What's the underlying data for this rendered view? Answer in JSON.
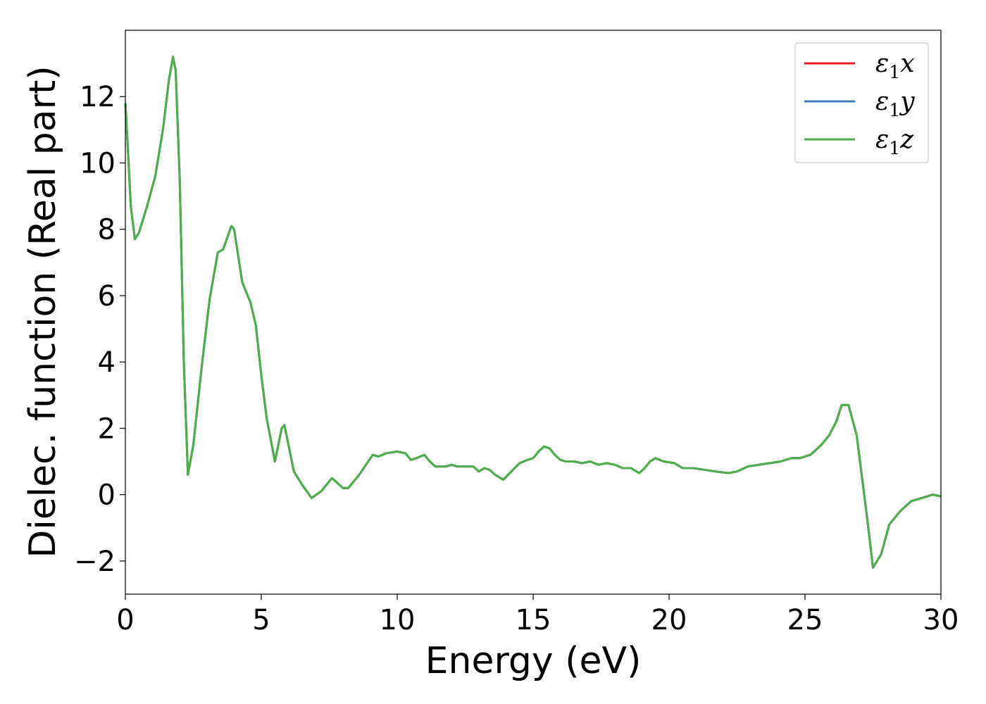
{
  "chart_data": {
    "type": "line",
    "title": "",
    "xlabel": "Energy (eV)",
    "ylabel": "Dielec. function (Real part)",
    "xlim": [
      0,
      30
    ],
    "ylim": [
      -3,
      14
    ],
    "xticks": [
      0,
      5,
      10,
      15,
      20,
      25,
      30
    ],
    "yticks": [
      -2,
      0,
      2,
      4,
      6,
      8,
      10,
      12
    ],
    "xtick_labels": [
      "0",
      "5",
      "10",
      "15",
      "20",
      "25",
      "30"
    ],
    "ytick_labels": [
      "−2",
      "0",
      "2",
      "4",
      "6",
      "8",
      "10",
      "12"
    ],
    "grid": false,
    "legend_position": "top-right",
    "x": [
      0,
      0.1,
      0.2,
      0.35,
      0.5,
      0.8,
      1.1,
      1.4,
      1.6,
      1.75,
      1.85,
      2.0,
      2.15,
      2.3,
      2.5,
      2.8,
      3.1,
      3.4,
      3.6,
      3.9,
      4.0,
      4.3,
      4.6,
      4.8,
      5.0,
      5.2,
      5.5,
      5.75,
      5.85,
      6.0,
      6.2,
      6.5,
      6.85,
      7.2,
      7.6,
      8.0,
      8.2,
      8.6,
      9.1,
      9.3,
      9.6,
      10.0,
      10.3,
      10.5,
      10.7,
      11.0,
      11.2,
      11.4,
      11.8,
      12.0,
      12.2,
      12.5,
      12.8,
      13.0,
      13.2,
      13.4,
      13.6,
      13.9,
      14.2,
      14.5,
      14.8,
      15.0,
      15.2,
      15.4,
      15.6,
      15.8,
      16.0,
      16.2,
      16.5,
      16.8,
      17.1,
      17.4,
      17.7,
      18.0,
      18.3,
      18.6,
      18.9,
      19.1,
      19.3,
      19.5,
      19.8,
      20.2,
      20.5,
      20.9,
      21.3,
      21.7,
      22.2,
      22.5,
      22.9,
      23.3,
      23.7,
      24.1,
      24.5,
      24.8,
      25.2,
      25.6,
      25.9,
      26.15,
      26.35,
      26.6,
      26.9,
      27.1,
      27.3,
      27.5,
      27.8,
      28.1,
      28.5,
      28.9,
      29.3,
      29.7,
      30.0
    ],
    "series": [
      {
        "name": "x",
        "color": "#e41a1c",
        "values": [
          11.8,
          10.3,
          8.7,
          7.7,
          7.9,
          8.7,
          9.6,
          11.1,
          12.5,
          13.2,
          12.8,
          9.5,
          4.0,
          0.6,
          1.5,
          3.8,
          5.9,
          7.3,
          7.4,
          8.1,
          8.0,
          6.4,
          5.8,
          5.1,
          3.6,
          2.3,
          1.0,
          2.0,
          2.1,
          1.5,
          0.7,
          0.3,
          -0.1,
          0.1,
          0.5,
          0.2,
          0.2,
          0.6,
          1.2,
          1.15,
          1.25,
          1.3,
          1.25,
          1.05,
          1.1,
          1.2,
          1.0,
          0.85,
          0.85,
          0.9,
          0.85,
          0.85,
          0.85,
          0.7,
          0.8,
          0.75,
          0.6,
          0.45,
          0.7,
          0.95,
          1.05,
          1.1,
          1.3,
          1.45,
          1.4,
          1.2,
          1.05,
          1.0,
          1.0,
          0.95,
          1.0,
          0.9,
          0.95,
          0.9,
          0.8,
          0.8,
          0.65,
          0.8,
          1.0,
          1.1,
          1.0,
          0.95,
          0.8,
          0.8,
          0.75,
          0.7,
          0.65,
          0.7,
          0.85,
          0.9,
          0.95,
          1.0,
          1.1,
          1.1,
          1.2,
          1.5,
          1.8,
          2.2,
          2.7,
          2.7,
          1.8,
          0.5,
          -0.8,
          -2.2,
          -1.8,
          -0.9,
          -0.5,
          -0.2,
          -0.1,
          0.0,
          -0.05
        ]
      },
      {
        "name": "y",
        "color": "#377eb8",
        "values": [
          11.8,
          10.3,
          8.7,
          7.7,
          7.9,
          8.7,
          9.6,
          11.1,
          12.5,
          13.2,
          12.8,
          9.5,
          4.0,
          0.6,
          1.5,
          3.8,
          5.9,
          7.3,
          7.4,
          8.1,
          8.0,
          6.4,
          5.8,
          5.1,
          3.6,
          2.3,
          1.0,
          2.0,
          2.1,
          1.5,
          0.7,
          0.3,
          -0.1,
          0.1,
          0.5,
          0.2,
          0.2,
          0.6,
          1.2,
          1.15,
          1.25,
          1.3,
          1.25,
          1.05,
          1.1,
          1.2,
          1.0,
          0.85,
          0.85,
          0.9,
          0.85,
          0.85,
          0.85,
          0.7,
          0.8,
          0.75,
          0.6,
          0.45,
          0.7,
          0.95,
          1.05,
          1.1,
          1.3,
          1.45,
          1.4,
          1.2,
          1.05,
          1.0,
          1.0,
          0.95,
          1.0,
          0.9,
          0.95,
          0.9,
          0.8,
          0.8,
          0.65,
          0.8,
          1.0,
          1.1,
          1.0,
          0.95,
          0.8,
          0.8,
          0.75,
          0.7,
          0.65,
          0.7,
          0.85,
          0.9,
          0.95,
          1.0,
          1.1,
          1.1,
          1.2,
          1.5,
          1.8,
          2.2,
          2.7,
          2.7,
          1.8,
          0.5,
          -0.8,
          -2.2,
          -1.8,
          -0.9,
          -0.5,
          -0.2,
          -0.1,
          0.0,
          -0.05
        ]
      },
      {
        "name": "z",
        "color": "#4daf4a",
        "values": [
          11.8,
          10.3,
          8.7,
          7.7,
          7.9,
          8.7,
          9.6,
          11.1,
          12.5,
          13.2,
          12.8,
          9.5,
          4.0,
          0.6,
          1.5,
          3.8,
          5.9,
          7.3,
          7.4,
          8.1,
          8.0,
          6.4,
          5.8,
          5.1,
          3.6,
          2.3,
          1.0,
          2.0,
          2.1,
          1.5,
          0.7,
          0.3,
          -0.1,
          0.1,
          0.5,
          0.2,
          0.2,
          0.6,
          1.2,
          1.15,
          1.25,
          1.3,
          1.25,
          1.05,
          1.1,
          1.2,
          1.0,
          0.85,
          0.85,
          0.9,
          0.85,
          0.85,
          0.85,
          0.7,
          0.8,
          0.75,
          0.6,
          0.45,
          0.7,
          0.95,
          1.05,
          1.1,
          1.3,
          1.45,
          1.4,
          1.2,
          1.05,
          1.0,
          1.0,
          0.95,
          1.0,
          0.9,
          0.95,
          0.9,
          0.8,
          0.8,
          0.65,
          0.8,
          1.0,
          1.1,
          1.0,
          0.95,
          0.8,
          0.8,
          0.75,
          0.7,
          0.65,
          0.7,
          0.85,
          0.9,
          0.95,
          1.0,
          1.1,
          1.1,
          1.2,
          1.5,
          1.8,
          2.2,
          2.7,
          2.7,
          1.8,
          0.5,
          -0.8,
          -2.2,
          -1.8,
          -0.9,
          -0.5,
          -0.2,
          -0.1,
          0.0,
          -0.05
        ]
      }
    ],
    "legend": {
      "symbol": "ε",
      "subscript": "1",
      "entries": [
        "x",
        "y",
        "z"
      ]
    }
  }
}
